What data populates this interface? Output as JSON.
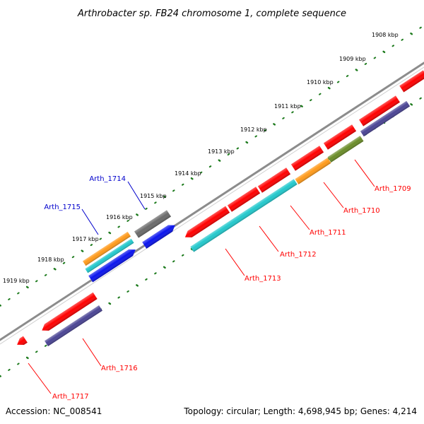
{
  "title": "Arthrobacter sp. FB24 chromosome 1, complete sequence",
  "footer": {
    "accession": "Accession: NC_008541",
    "stats": "Topology: circular; Length: 4,698,945 bp; Genes: 4,214"
  },
  "ruler": {
    "labels": [
      {
        "text": "1908 kbp"
      },
      {
        "text": "1909 kbp"
      },
      {
        "text": "1910 kbp"
      },
      {
        "text": "1911 kbp"
      },
      {
        "text": "1912 kbp"
      },
      {
        "text": "1913 kbp"
      },
      {
        "text": "1914 kbp"
      },
      {
        "text": "1915 kbp"
      },
      {
        "text": "1916 kbp"
      },
      {
        "text": "1917 kbp"
      },
      {
        "text": "1918 kbp"
      },
      {
        "text": "1919 kbp"
      }
    ]
  },
  "colors": {
    "backbone": "#8c8c8c",
    "cds_red": "#ff0000",
    "gene_navy": "#4a4494",
    "cyan": "#22c8cc",
    "orange": "#ff9a1a",
    "olive": "#6a8c28",
    "gray_feature": "#6a6a6a",
    "blue": "#0a14ee",
    "ruler_green": "#1c7a1c",
    "label_red": "#ff0000",
    "label_blue": "#0000cc"
  },
  "genes": [
    {
      "name": "Arth_1709",
      "strand": "reverse"
    },
    {
      "name": "Arth_1710",
      "strand": "reverse"
    },
    {
      "name": "Arth_1711",
      "strand": "reverse"
    },
    {
      "name": "Arth_1712",
      "strand": "reverse"
    },
    {
      "name": "Arth_1713",
      "strand": "reverse"
    },
    {
      "name": "Arth_1714",
      "strand": "forward"
    },
    {
      "name": "Arth_1715",
      "strand": "forward"
    },
    {
      "name": "Arth_1716",
      "strand": "reverse"
    },
    {
      "name": "Arth_1717",
      "strand": "reverse"
    }
  ]
}
